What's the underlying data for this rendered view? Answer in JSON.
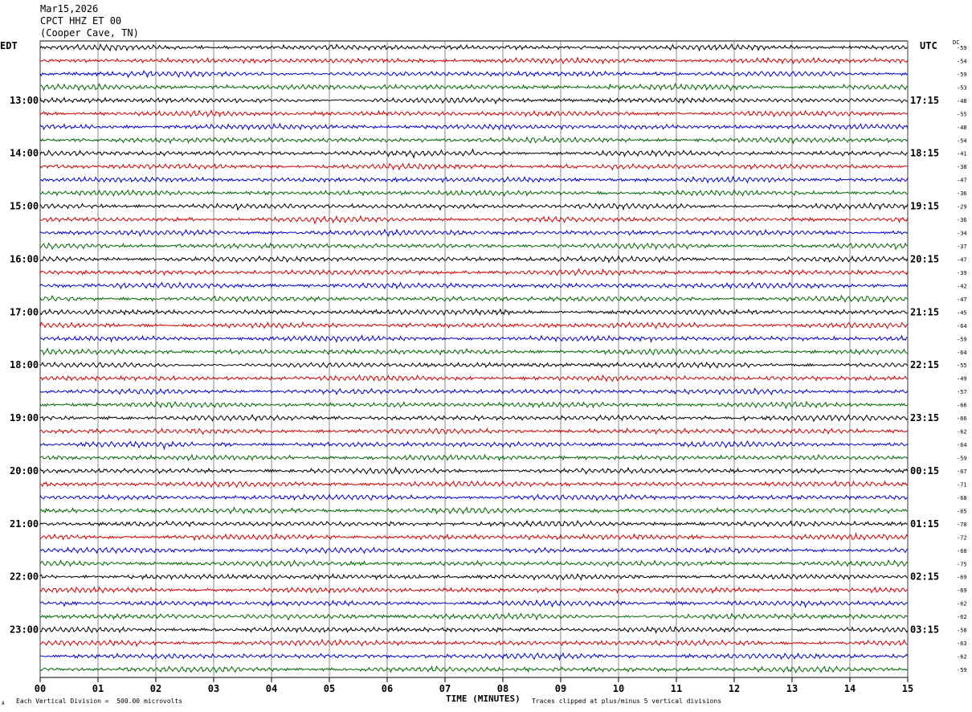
{
  "header": {
    "date": "Mar15,2026",
    "station": "CPCT HHZ ET 00",
    "location": "(Cooper Cave, TN)"
  },
  "left_label": "EDT",
  "right_label": "UTC",
  "dc_label": "DC",
  "footer": {
    "division_note": "Each Vertical Division =  500.00 microvolts",
    "clip_note": "Traces clipped at plus/minus 5 vertical divisions",
    "corner_mark": "A"
  },
  "chart_data": {
    "type": "line",
    "title": "CPCT HHZ ET 00 (Cooper Cave, TN) Mar15,2026",
    "xlabel": "TIME (MINUTES)",
    "ylabel": "",
    "x_ticks": [
      "00",
      "01",
      "02",
      "03",
      "04",
      "05",
      "06",
      "07",
      "08",
      "09",
      "10",
      "11",
      "12",
      "13",
      "14",
      "15"
    ],
    "xlim": [
      0,
      15
    ],
    "traces_per_hour": 4,
    "trace_colors": [
      "#000000",
      "#cc0000",
      "#0000cc",
      "#006600"
    ],
    "edt_hour_labels": [
      "13:00",
      "14:00",
      "15:00",
      "16:00",
      "17:00",
      "18:00",
      "19:00",
      "20:00",
      "21:00",
      "22:00",
      "23:00"
    ],
    "utc_hour_labels": [
      "17:15",
      "18:15",
      "19:15",
      "20:15",
      "21:15",
      "22:15",
      "23:15",
      "00:15",
      "01:15",
      "02:15",
      "03:15"
    ],
    "dc_offsets": [
      -59,
      -54,
      -59,
      -53,
      -48,
      -55,
      -48,
      -54,
      -41,
      -38,
      -47,
      -36,
      -29,
      -36,
      -34,
      -37,
      -47,
      -39,
      -42,
      -47,
      -45,
      -64,
      -59,
      -64,
      -55,
      -49,
      -57,
      -66,
      -66,
      -62,
      -64,
      -59,
      -67,
      -71,
      -68,
      -65,
      -70,
      -72,
      -60,
      -75,
      -69,
      -69,
      -62,
      -62,
      -58,
      -63,
      -62,
      -59
    ],
    "grid": "vertical lines each minute",
    "division_microvolts": 500.0
  }
}
